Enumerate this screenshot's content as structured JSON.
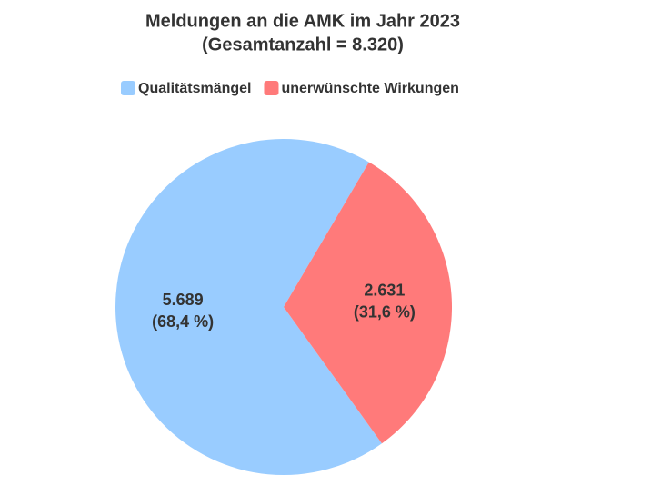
{
  "chart_data": {
    "type": "pie",
    "title": "Meldungen an die AMK im Jahr 2023",
    "subtitle": "(Gesamtanzahl = 8.320)",
    "categories": [
      "Qualitätsmängel",
      "unerwünschte Wirkungen"
    ],
    "values": [
      5689,
      2631
    ],
    "value_labels": [
      "5.689",
      "2.631"
    ],
    "percents": [
      68.4,
      31.6
    ],
    "percent_labels": [
      "(68,4 %)",
      "(31,6 %)"
    ],
    "colors": [
      "#99ccff",
      "#ff7a7a"
    ],
    "legend": "top"
  }
}
